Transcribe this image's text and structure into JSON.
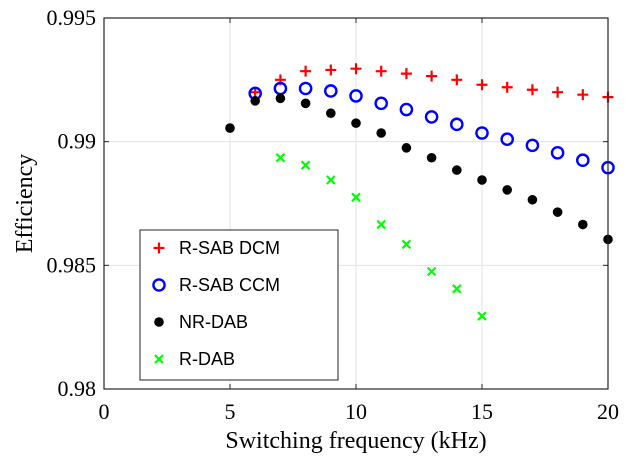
{
  "chart_data": {
    "type": "scatter",
    "title": "",
    "xlabel": "Switching frequency (kHz)",
    "ylabel": "Efficiency",
    "xlim": [
      0,
      20
    ],
    "ylim": [
      0.98,
      0.995
    ],
    "xticks": [
      0,
      5,
      10,
      15,
      20
    ],
    "yticks": [
      0.98,
      0.985,
      0.99,
      0.995
    ],
    "xtick_labels": [
      "0",
      "5",
      "10",
      "15",
      "20"
    ],
    "ytick_labels": [
      "0.98",
      "0.985",
      "0.99",
      "0.995"
    ],
    "grid": true,
    "legend_position": "bottom-left",
    "series": [
      {
        "name": "R-SAB DCM",
        "marker": "plus",
        "color": "#ff0000",
        "x": [
          6,
          7,
          8,
          9,
          10,
          11,
          12,
          13,
          14,
          15,
          16,
          17,
          18,
          19,
          20
        ],
        "y": [
          0.992,
          0.9925,
          0.99285,
          0.9929,
          0.99295,
          0.99285,
          0.99275,
          0.99265,
          0.9925,
          0.9923,
          0.9922,
          0.9921,
          0.992,
          0.9919,
          0.9918
        ]
      },
      {
        "name": "R-SAB CCM",
        "marker": "circle",
        "color": "#0000ff",
        "x": [
          6,
          7,
          8,
          9,
          10,
          11,
          12,
          13,
          14,
          15,
          16,
          17,
          18,
          19,
          20
        ],
        "y": [
          0.99195,
          0.99215,
          0.99215,
          0.99205,
          0.99185,
          0.99155,
          0.9913,
          0.991,
          0.9907,
          0.99035,
          0.9901,
          0.98985,
          0.98955,
          0.98925,
          0.98895
        ]
      },
      {
        "name": "NR-DAB",
        "marker": "dot",
        "color": "#000000",
        "x": [
          5,
          6,
          7,
          8,
          9,
          10,
          11,
          12,
          13,
          14,
          15,
          16,
          17,
          18,
          19,
          20
        ],
        "y": [
          0.99055,
          0.99165,
          0.99175,
          0.99155,
          0.99115,
          0.99075,
          0.99035,
          0.98975,
          0.98935,
          0.98885,
          0.98845,
          0.98805,
          0.98765,
          0.98715,
          0.98665,
          0.98605
        ]
      },
      {
        "name": "R-DAB",
        "marker": "x",
        "color": "#00ff00",
        "x": [
          7,
          8,
          9,
          10,
          11,
          12,
          13,
          14,
          15
        ],
        "y": [
          0.98935,
          0.98905,
          0.98845,
          0.98775,
          0.98665,
          0.98585,
          0.98475,
          0.98405,
          0.98295
        ]
      }
    ]
  }
}
